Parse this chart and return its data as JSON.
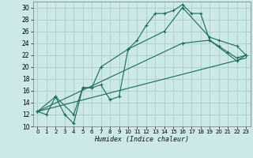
{
  "xlabel": "Humidex (Indice chaleur)",
  "bg_color": "#cce8e8",
  "grid_color": "#aacccc",
  "line_color": "#1a6b5a",
  "xlim": [
    -0.5,
    23.5
  ],
  "ylim": [
    10,
    31
  ],
  "xticks": [
    0,
    1,
    2,
    3,
    4,
    5,
    6,
    7,
    8,
    9,
    10,
    11,
    12,
    13,
    14,
    15,
    16,
    17,
    18,
    19,
    20,
    21,
    22,
    23
  ],
  "yticks": [
    10,
    12,
    14,
    16,
    18,
    20,
    22,
    24,
    26,
    28,
    30
  ],
  "line1_x": [
    0,
    1,
    2,
    3,
    4,
    5,
    6,
    7,
    8,
    9,
    10,
    11,
    12,
    13,
    14,
    15,
    16,
    17,
    18,
    19,
    20,
    21,
    22,
    23
  ],
  "line1_y": [
    12.5,
    12.0,
    15.0,
    12.0,
    10.5,
    16.5,
    16.5,
    17.0,
    14.5,
    15.0,
    23.0,
    24.5,
    27.0,
    29.0,
    29.0,
    29.5,
    30.5,
    29.0,
    29.0,
    24.5,
    23.5,
    22.5,
    21.5,
    22.0
  ],
  "line2_x": [
    0,
    2,
    4,
    5,
    6,
    7,
    10,
    14,
    16,
    19,
    20,
    22,
    23
  ],
  "line2_y": [
    12.5,
    15.0,
    12.0,
    16.5,
    16.5,
    20.0,
    23.0,
    26.0,
    30.0,
    25.0,
    24.5,
    23.5,
    22.0
  ],
  "line3_x": [
    0,
    16,
    19,
    22,
    23
  ],
  "line3_y": [
    12.5,
    24.0,
    24.5,
    21.0,
    22.0
  ],
  "line4_x": [
    0,
    23
  ],
  "line4_y": [
    12.5,
    21.5
  ]
}
